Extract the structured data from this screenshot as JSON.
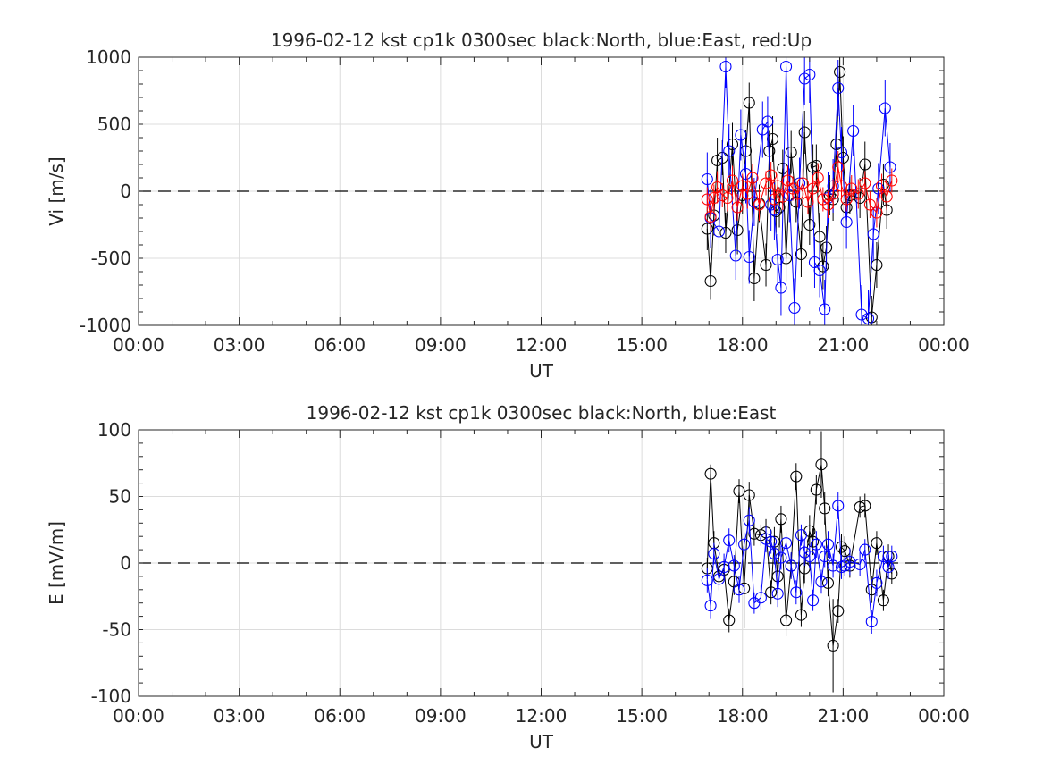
{
  "chart_data": [
    {
      "type": "scatter",
      "title": "1996-02-12 kst cp1k 0300sec black:North, blue:East, red:Up",
      "xlabel": "UT",
      "ylabel": "Vi [m/s]",
      "xlim": [
        0,
        24
      ],
      "ylim": [
        -1000,
        1000
      ],
      "xticks": [
        "00:00",
        "03:00",
        "06:00",
        "09:00",
        "12:00",
        "15:00",
        "18:00",
        "21:00",
        "00:00"
      ],
      "yticks": [
        "1000",
        "500",
        "0",
        "-500",
        "-1000"
      ],
      "grid": true,
      "zero_line": "dashed",
      "series": [
        {
          "name": "North",
          "color": "#000000",
          "x": [
            16.95,
            17.05,
            17.15,
            17.25,
            17.4,
            17.5,
            17.7,
            17.85,
            18.0,
            18.1,
            18.2,
            18.35,
            18.5,
            18.7,
            18.8,
            18.9,
            19.0,
            19.1,
            19.2,
            19.3,
            19.45,
            19.6,
            19.75,
            19.85,
            20.0,
            20.1,
            20.2,
            20.3,
            20.4,
            20.5,
            20.6,
            20.7,
            20.8,
            20.9,
            21.0,
            21.1,
            21.2,
            21.5,
            21.65,
            21.85,
            22.0,
            22.2,
            22.3
          ],
          "y": [
            -280,
            -670,
            -180,
            230,
            250,
            -310,
            350,
            -290,
            -30,
            300,
            660,
            -650,
            -90,
            -550,
            300,
            390,
            -150,
            -120,
            170,
            -500,
            290,
            -80,
            -470,
            440,
            -250,
            180,
            190,
            -340,
            -560,
            -420,
            -30,
            -60,
            350,
            890,
            250,
            -120,
            -30,
            -50,
            200,
            -940,
            -550,
            50,
            -140
          ],
          "err": [
            160,
            140,
            150,
            170,
            130,
            150,
            160,
            180,
            140,
            160,
            150,
            170,
            140,
            160,
            150,
            170,
            160,
            150,
            140,
            170,
            160,
            150,
            170,
            160,
            150,
            170,
            160,
            180,
            170,
            160,
            150,
            160,
            170,
            140,
            160,
            150,
            140,
            150,
            170,
            160,
            170,
            150,
            140
          ]
        },
        {
          "name": "East",
          "color": "#0000ff",
          "x": [
            16.95,
            17.05,
            17.3,
            17.5,
            17.6,
            17.8,
            17.95,
            18.1,
            18.2,
            18.35,
            18.6,
            18.75,
            18.85,
            18.95,
            19.05,
            19.15,
            19.3,
            19.4,
            19.55,
            19.7,
            19.85,
            20.0,
            20.15,
            20.3,
            20.45,
            20.55,
            20.7,
            20.85,
            20.95,
            21.1,
            21.3,
            21.55,
            21.75,
            21.9,
            22.05,
            22.25,
            22.4
          ],
          "y": [
            90,
            -200,
            -300,
            930,
            300,
            -480,
            420,
            130,
            -490,
            -80,
            460,
            520,
            -100,
            -140,
            -510,
            -720,
            930,
            -30,
            -870,
            60,
            840,
            870,
            -530,
            -590,
            -880,
            -50,
            40,
            770,
            290,
            -230,
            450,
            -920,
            -950,
            -320,
            20,
            620,
            180
          ],
          "err": [
            200,
            220,
            180,
            160,
            200,
            180,
            190,
            220,
            200,
            180,
            210,
            190,
            200,
            220,
            190,
            210,
            180,
            200,
            220,
            190,
            200,
            210,
            190,
            200,
            220,
            190,
            200,
            210,
            190,
            200,
            190,
            220,
            210,
            200,
            190,
            210,
            180
          ]
        },
        {
          "name": "Up",
          "color": "#ff0000",
          "x": [
            16.95,
            17.05,
            17.15,
            17.25,
            17.4,
            17.55,
            17.7,
            17.85,
            18.0,
            18.15,
            18.3,
            18.5,
            18.7,
            18.85,
            18.95,
            19.05,
            19.2,
            19.35,
            19.5,
            19.65,
            19.8,
            19.95,
            20.1,
            20.25,
            20.4,
            20.55,
            20.7,
            20.85,
            20.95,
            21.1,
            21.25,
            21.45,
            21.65,
            21.8,
            22.0,
            22.15,
            22.3,
            22.45
          ],
          "y": [
            -60,
            -190,
            -50,
            30,
            -30,
            -50,
            80,
            -120,
            40,
            -20,
            100,
            -100,
            60,
            120,
            -60,
            40,
            -40,
            80,
            20,
            -20,
            60,
            -80,
            20,
            100,
            -60,
            -100,
            -20,
            180,
            40,
            -60,
            20,
            -20,
            60,
            -100,
            -160,
            40,
            -40,
            80
          ],
          "err": [
            90,
            110,
            100,
            120,
            90,
            100,
            110,
            100,
            90,
            110,
            100,
            120,
            90,
            100,
            110,
            90,
            100,
            110,
            90,
            100,
            110,
            90,
            100,
            110,
            90,
            100,
            110,
            120,
            100,
            90,
            100,
            110,
            90,
            100,
            110,
            90,
            100,
            90
          ]
        }
      ]
    },
    {
      "type": "scatter",
      "title": "1996-02-12 kst cp1k 0300sec black:North, blue:East",
      "xlabel": "UT",
      "ylabel": "E [mV/m]",
      "xlim": [
        0,
        24
      ],
      "ylim": [
        -100,
        100
      ],
      "xticks": [
        "00:00",
        "03:00",
        "06:00",
        "09:00",
        "12:00",
        "15:00",
        "18:00",
        "21:00",
        "00:00"
      ],
      "yticks": [
        "100",
        "50",
        "0",
        "-50",
        "-100"
      ],
      "grid": true,
      "zero_line": "dashed",
      "series": [
        {
          "name": "North",
          "color": "#000000",
          "x": [
            16.95,
            17.05,
            17.15,
            17.3,
            17.45,
            17.6,
            17.75,
            17.9,
            18.05,
            18.2,
            18.35,
            18.55,
            18.7,
            18.85,
            18.95,
            19.05,
            19.15,
            19.3,
            19.45,
            19.6,
            19.75,
            19.85,
            20.0,
            20.1,
            20.2,
            20.35,
            20.45,
            20.55,
            20.7,
            20.85,
            20.95,
            21.05,
            21.2,
            21.5,
            21.65,
            21.85,
            22.0,
            22.2,
            22.35,
            22.45
          ],
          "y": [
            -4,
            67,
            15,
            -10,
            -5,
            -43,
            -14,
            54,
            -19,
            51,
            22,
            21,
            23,
            -22,
            16,
            -10,
            33,
            -43,
            -2,
            65,
            -39,
            -4,
            24,
            16,
            55,
            74,
            41,
            -15,
            -62,
            -36,
            12,
            9,
            -2,
            42,
            43,
            -20,
            15,
            -28,
            5,
            -8
          ],
          "err": [
            8,
            7,
            9,
            10,
            8,
            9,
            10,
            9,
            30,
            10,
            9,
            8,
            10,
            9,
            11,
            9,
            10,
            12,
            9,
            10,
            9,
            11,
            12,
            10,
            11,
            25,
            12,
            10,
            35,
            9,
            10,
            11,
            9,
            8,
            9,
            10,
            9,
            8,
            9,
            8
          ]
        },
        {
          "name": "East",
          "color": "#0000ff",
          "x": [
            16.95,
            17.05,
            17.15,
            17.3,
            17.45,
            17.6,
            17.75,
            17.9,
            18.05,
            18.2,
            18.35,
            18.55,
            18.7,
            18.85,
            18.95,
            19.05,
            19.15,
            19.3,
            19.45,
            19.6,
            19.75,
            19.85,
            20.0,
            20.1,
            20.2,
            20.35,
            20.45,
            20.55,
            20.7,
            20.85,
            20.95,
            21.05,
            21.2,
            21.5,
            21.65,
            21.85,
            22.0,
            22.2,
            22.35,
            22.45
          ],
          "y": [
            -13,
            -32,
            7,
            -12,
            -3,
            17,
            -2,
            -20,
            14,
            32,
            -30,
            -26,
            18,
            16,
            7,
            -23,
            4,
            15,
            -2,
            -22,
            21,
            8,
            5,
            -28,
            14,
            -14,
            5,
            14,
            -2,
            43,
            -3,
            -2,
            1,
            -1,
            10,
            -44,
            -15,
            5,
            -3,
            5
          ],
          "err": [
            9,
            10,
            8,
            9,
            10,
            9,
            8,
            10,
            9,
            10,
            8,
            9,
            10,
            9,
            8,
            10,
            9,
            8,
            10,
            9,
            8,
            10,
            9,
            8,
            10,
            9,
            8,
            10,
            9,
            10,
            9,
            8,
            10,
            9,
            8,
            9,
            10,
            8,
            9,
            8
          ]
        }
      ]
    }
  ]
}
